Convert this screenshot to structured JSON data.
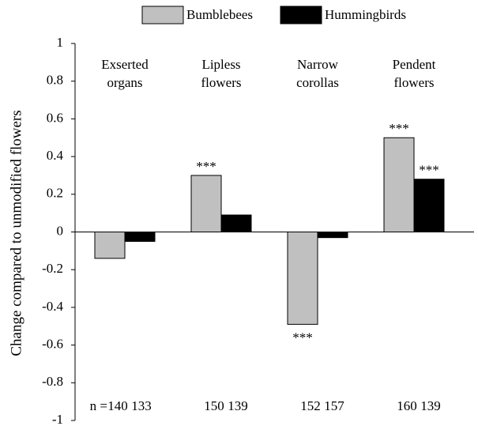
{
  "chart_data": {
    "type": "bar",
    "ylabel": "Change compared to unmodified flowers",
    "categories": [
      "Exserted organs",
      "Lipless flowers",
      "Narrow corollas",
      "Pendent flowers"
    ],
    "series": [
      {
        "name": "Bumblebees",
        "color": "#c0c0c0",
        "values": [
          -0.14,
          0.3,
          -0.49,
          0.5
        ],
        "significance": [
          null,
          "***",
          "***",
          "***"
        ],
        "n": [
          140,
          150,
          152,
          160
        ]
      },
      {
        "name": "Hummingbirds",
        "color": "#000000",
        "values": [
          -0.05,
          0.09,
          -0.03,
          0.28
        ],
        "significance": [
          null,
          null,
          null,
          "***"
        ],
        "n": [
          133,
          139,
          157,
          139
        ]
      }
    ],
    "n_label": "n =",
    "ylim": [
      -1,
      1
    ],
    "yticks": [
      -1,
      -0.8,
      -0.6,
      -0.4,
      -0.2,
      0,
      0.2,
      0.4,
      0.6,
      0.8,
      1
    ],
    "grid": false,
    "legend": "top"
  }
}
